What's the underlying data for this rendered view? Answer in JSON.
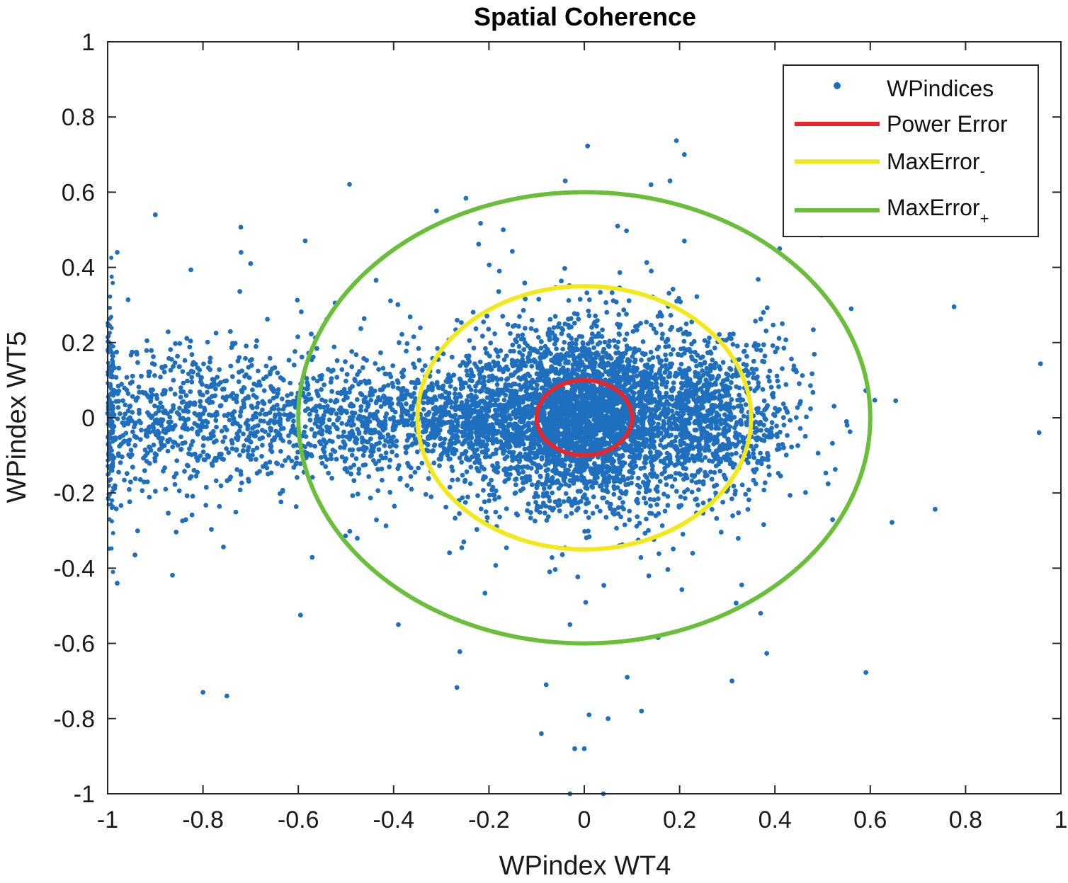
{
  "chart_data": {
    "type": "scatter",
    "title": "Spatial Coherence",
    "xlabel": "WPindex WT4",
    "ylabel": "WPindex WT5",
    "xlim": [
      -1,
      1
    ],
    "ylim": [
      -1,
      1
    ],
    "x_ticks": [
      -1,
      -0.8,
      -0.6,
      -0.4,
      -0.2,
      0,
      0.2,
      0.4,
      0.6,
      0.8,
      1
    ],
    "y_ticks": [
      -1,
      -0.8,
      -0.6,
      -0.4,
      -0.2,
      0,
      0.2,
      0.4,
      0.6,
      0.8,
      1
    ],
    "x_tick_labels": [
      "-1",
      "-0.8",
      "-0.6",
      "-0.4",
      "-0.2",
      "0",
      "0.2",
      "0.4",
      "0.6",
      "0.8",
      "1"
    ],
    "y_tick_labels": [
      "-1",
      "-0.8",
      "-0.6",
      "-0.4",
      "-0.2",
      "0",
      "0.2",
      "0.4",
      "0.6",
      "0.8",
      "1"
    ],
    "legend_position": "top-right",
    "colors": {
      "points": "#1f6fbf",
      "power_error": "#e8262a",
      "max_error_minus": "#f2e81a",
      "max_error_plus": "#6abf3a",
      "axes": "#262626"
    },
    "series": [
      {
        "name": "WPindices",
        "kind": "points",
        "note_random": "dense cloud centered at origin; representative outliers listed",
        "notable_points": [
          [
            -0.9,
            0.54
          ],
          [
            -0.31,
            0.55
          ],
          [
            0.21,
            0.7
          ],
          [
            -0.04,
            0.63
          ],
          [
            0.18,
            0.63
          ],
          [
            0.14,
            0.62
          ],
          [
            -0.72,
            0.44
          ],
          [
            -0.7,
            0.41
          ],
          [
            -0.17,
            0.5
          ],
          [
            0.07,
            0.51
          ],
          [
            0.21,
            0.47
          ],
          [
            0.41,
            0.45
          ],
          [
            0.56,
            0.29
          ],
          [
            0.55,
            -0.01
          ],
          [
            0.31,
            -0.7
          ],
          [
            -0.08,
            -0.71
          ],
          [
            -0.09,
            -0.84
          ],
          [
            -0.02,
            -0.88
          ],
          [
            0,
            -0.88
          ],
          [
            -0.03,
            -1.0
          ],
          [
            0.04,
            -1.0
          ],
          [
            0.05,
            -0.8
          ],
          [
            -0.8,
            -0.73
          ],
          [
            -0.75,
            -0.74
          ],
          [
            -0.39,
            -0.55
          ],
          [
            -0.03,
            -0.55
          ],
          [
            0.37,
            -0.52
          ],
          [
            -0.98,
            0.44
          ],
          [
            -0.98,
            -0.44
          ],
          [
            0.09,
            -0.69
          ],
          [
            0.12,
            -0.78
          ],
          [
            0.01,
            -0.79
          ]
        ]
      },
      {
        "name": "Power Error",
        "kind": "ellipse",
        "center": [
          0,
          0
        ],
        "rx": 0.1,
        "ry": 0.1
      },
      {
        "name": "MaxError",
        "subscript": "-",
        "kind": "ellipse",
        "center": [
          0,
          0
        ],
        "rx": 0.35,
        "ry": 0.35
      },
      {
        "name": "MaxError",
        "subscript": "+",
        "kind": "ellipse",
        "center": [
          0,
          0
        ],
        "rx": 0.6,
        "ry": 0.6
      }
    ]
  }
}
